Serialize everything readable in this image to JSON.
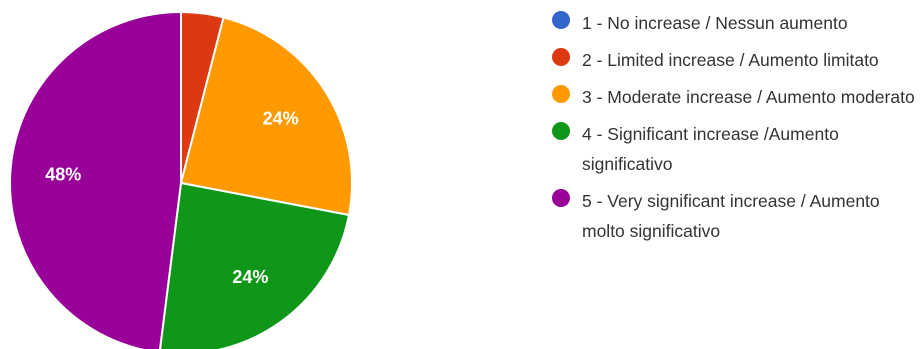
{
  "chart_data": {
    "type": "pie",
    "title": "",
    "categories": [
      "1 - No increase / Nessun aumento",
      "2 - Limited increase / Aumento limitato",
      "3 - Moderate increase / Aumento moderato",
      "4 - Significant increase /Aumento significativo",
      "5 - Very significant increase / Aumento molto significativo"
    ],
    "values": [
      0,
      4,
      24,
      24,
      48
    ],
    "slice_labels": [
      "",
      "",
      "24%",
      "24%",
      "48%"
    ],
    "colors": [
      "#3366cc",
      "#dc3912",
      "#ff9900",
      "#109618",
      "#990099"
    ],
    "start_angle_deg": 90,
    "direction": "clockwise",
    "legend_position": "right"
  }
}
